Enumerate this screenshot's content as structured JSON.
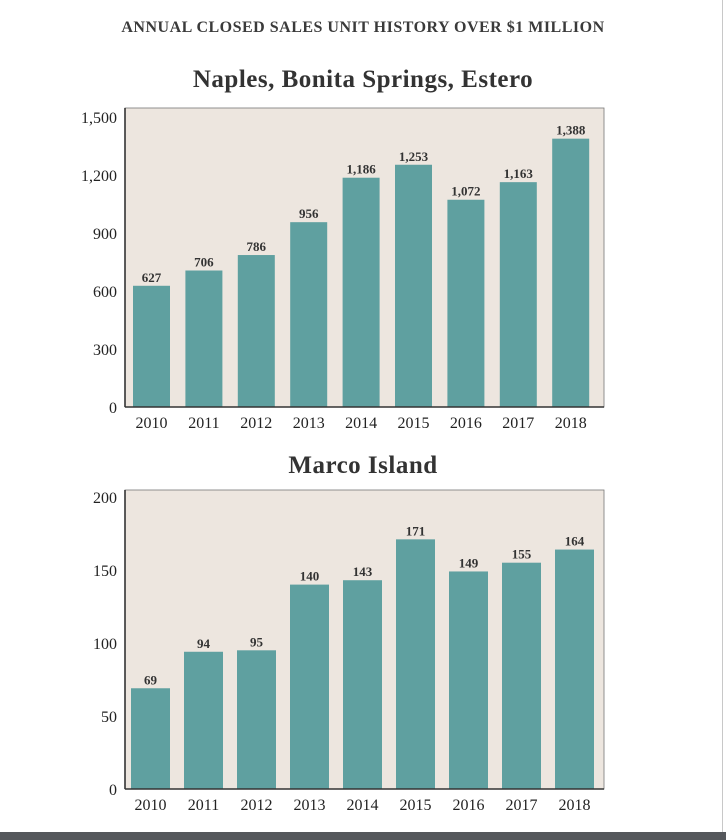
{
  "page": {
    "title": "ANNUAL CLOSED SALES UNIT HISTORY OVER $1 MILLION"
  },
  "colors": {
    "bar": "#5fa0a0",
    "plot_bg": "#ede6df",
    "axis": "#333333"
  },
  "chart_data": [
    {
      "type": "bar",
      "title": "Naples, Bonita Springs, Estero",
      "categories": [
        "2010",
        "2011",
        "2012",
        "2013",
        "2014",
        "2015",
        "2016",
        "2017",
        "2018"
      ],
      "values": [
        627,
        706,
        786,
        956,
        1186,
        1253,
        1072,
        1163,
        1388
      ],
      "value_labels": [
        "627",
        "706",
        "786",
        "956",
        "1,186",
        "1,253",
        "1,072",
        "1,163",
        "1,388"
      ],
      "yticks": [
        0,
        300,
        600,
        900,
        1200,
        1500
      ],
      "ytick_labels": [
        "0",
        "300",
        "600",
        "900",
        "1,200",
        "1,500"
      ],
      "ylim": [
        0,
        1500
      ],
      "xlabel": "",
      "ylabel": "",
      "grid": false
    },
    {
      "type": "bar",
      "title": "Marco Island",
      "categories": [
        "2010",
        "2011",
        "2012",
        "2013",
        "2014",
        "2015",
        "2016",
        "2017",
        "2018"
      ],
      "values": [
        69,
        94,
        95,
        140,
        143,
        171,
        149,
        155,
        164
      ],
      "value_labels": [
        "69",
        "94",
        "95",
        "140",
        "143",
        "171",
        "149",
        "155",
        "164"
      ],
      "yticks": [
        0,
        50,
        100,
        150,
        200
      ],
      "ytick_labels": [
        "0",
        "50",
        "100",
        "150",
        "200"
      ],
      "ylim": [
        0,
        200
      ],
      "xlabel": "",
      "ylabel": "",
      "grid": false
    }
  ]
}
